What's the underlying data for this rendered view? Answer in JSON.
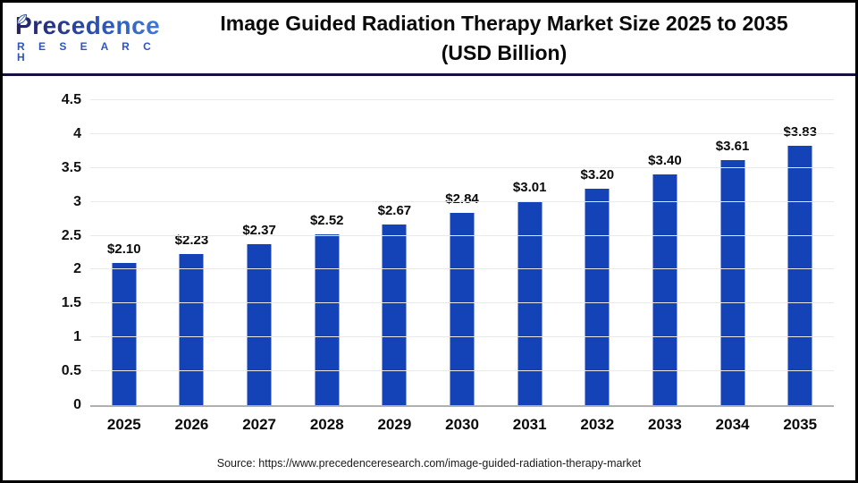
{
  "header": {
    "logo_line1": "Precedence",
    "logo_line2": "R E S E A R C H",
    "title_line1": "Image Guided Radiation Therapy Market Size 2025 to 2035",
    "title_line2": "(USD Billion)"
  },
  "chart_data": {
    "type": "bar",
    "title": "Image Guided Radiation Therapy Market Size 2025 to 2035 (USD Billion)",
    "categories": [
      "2025",
      "2026",
      "2027",
      "2028",
      "2029",
      "2030",
      "2031",
      "2032",
      "2033",
      "2034",
      "2035"
    ],
    "values": [
      2.1,
      2.23,
      2.37,
      2.52,
      2.67,
      2.84,
      3.01,
      3.2,
      3.4,
      3.61,
      3.83
    ],
    "value_labels": [
      "$2.10",
      "$2.23",
      "$2.37",
      "$2.52",
      "$2.67",
      "$2.84",
      "$3.01",
      "$3.20",
      "$3.40",
      "$3.61",
      "$3.83"
    ],
    "xlabel": "",
    "ylabel": "",
    "ylim": [
      0,
      4.5
    ],
    "yticks": [
      "0",
      "0.5",
      "1",
      "1.5",
      "2",
      "2.5",
      "3",
      "3.5",
      "4",
      "4.5"
    ],
    "grid": true,
    "legend_position": "none",
    "bar_color": "#1443b8",
    "grid_color": "#e9e9e9",
    "axis_color": "#b0b0b0"
  },
  "footer": {
    "source": "Source: https://www.precedenceresearch.com/image-guided-radiation-therapy-market"
  }
}
